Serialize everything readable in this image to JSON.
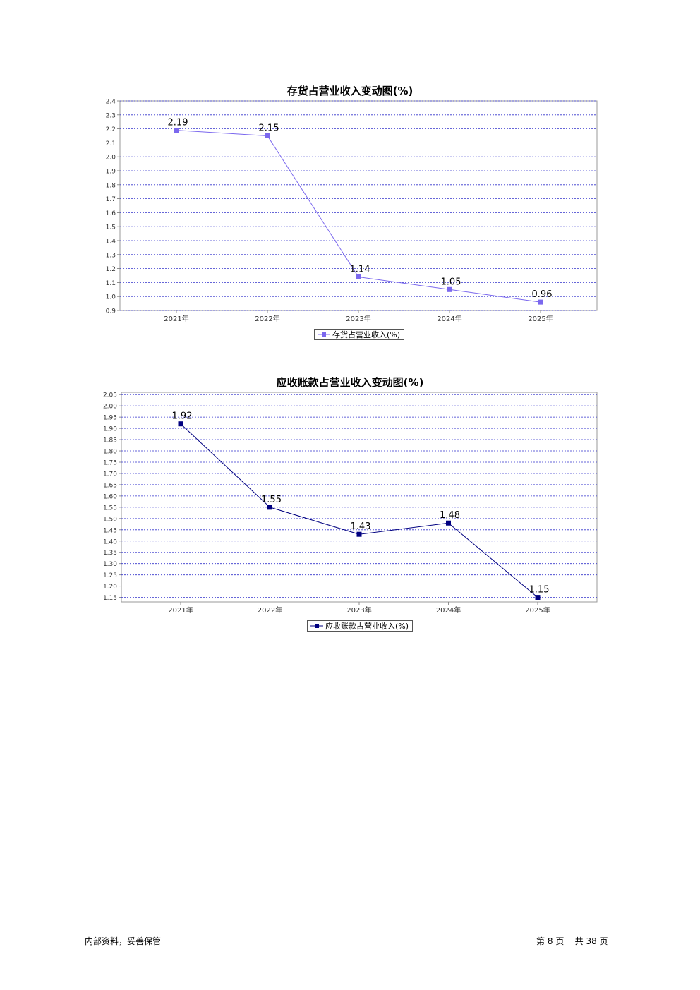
{
  "chart_data": [
    {
      "type": "line",
      "title": "存货占营业收入变动图(%)",
      "categories": [
        "2021年",
        "2022年",
        "2023年",
        "2024年",
        "2025年"
      ],
      "series": [
        {
          "name": "存货占营业收入(%)",
          "values": [
            2.19,
            2.15,
            1.14,
            1.05,
            0.96
          ]
        }
      ],
      "data_labels": [
        "2.19",
        "2.15",
        "1.14",
        "1.05",
        "0.96"
      ],
      "ylim": [
        0.9,
        2.4
      ],
      "y_ticks": [
        2.4,
        2.3,
        2.2,
        2.1,
        2.0,
        1.9,
        1.8,
        1.7,
        1.6,
        1.5,
        1.4,
        1.3,
        1.2,
        1.1,
        1.0,
        0.9
      ],
      "y_tick_labels": [
        "2.4",
        "2.3",
        "2.2",
        "2.1",
        "2.0",
        "1.9",
        "1.8",
        "1.7",
        "1.6",
        "1.5",
        "1.4",
        "1.3",
        "1.2",
        "1.1",
        "1.0",
        "0.9"
      ],
      "grid": true,
      "legend": "bottom-center",
      "color": "#7b68ee"
    },
    {
      "type": "line",
      "title": "应收账款占营业收入变动图(%)",
      "categories": [
        "2021年",
        "2022年",
        "2023年",
        "2024年",
        "2025年"
      ],
      "series": [
        {
          "name": "应收账款占营业收入(%)",
          "values": [
            1.92,
            1.55,
            1.43,
            1.48,
            1.15
          ]
        }
      ],
      "data_labels": [
        "1.92",
        "1.55",
        "1.43",
        "1.48",
        "1.15"
      ],
      "ylim": [
        1.13,
        2.06
      ],
      "y_ticks": [
        2.05,
        2.0,
        1.95,
        1.9,
        1.85,
        1.8,
        1.75,
        1.7,
        1.65,
        1.6,
        1.55,
        1.5,
        1.45,
        1.4,
        1.35,
        1.3,
        1.25,
        1.2,
        1.15
      ],
      "y_tick_labels": [
        "2.05",
        "2.00",
        "1.95",
        "1.90",
        "1.85",
        "1.80",
        "1.75",
        "1.70",
        "1.65",
        "1.60",
        "1.55",
        "1.50",
        "1.45",
        "1.40",
        "1.35",
        "1.30",
        "1.25",
        "1.20",
        "1.15"
      ],
      "grid": true,
      "legend": "bottom-center",
      "color": "#000080"
    }
  ],
  "footer": {
    "left": "内部资料，妥善保管",
    "page_prefix": "第",
    "page": "8",
    "page_unit": "页",
    "total_prefix": "共",
    "total": "38",
    "total_unit": "页"
  }
}
